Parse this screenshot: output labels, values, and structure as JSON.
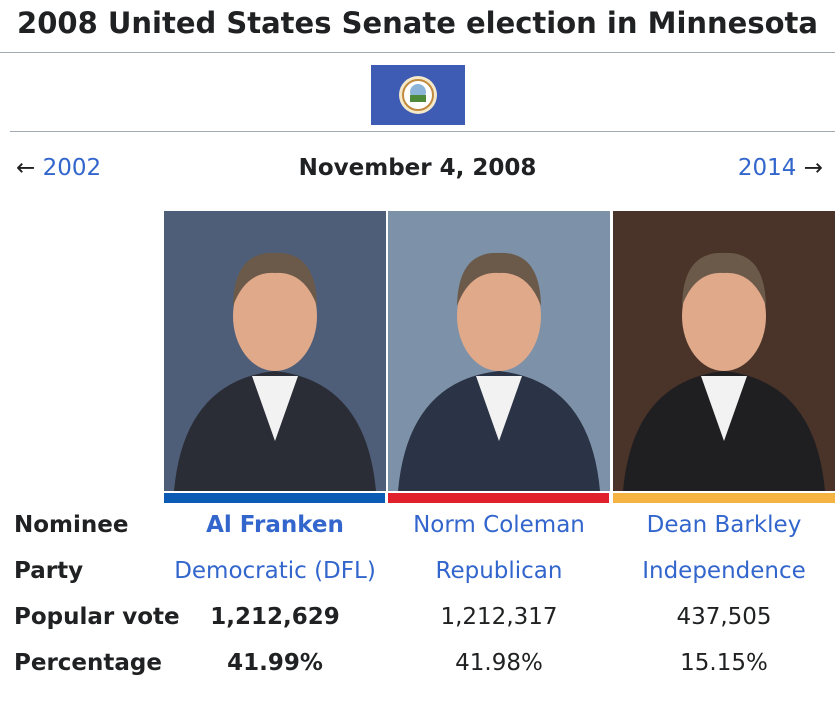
{
  "header": {
    "title": "2008 United States Senate election in Minnesota"
  },
  "nav": {
    "prev_arrow": "←",
    "prev_year": "2002",
    "date": "November 4, 2008",
    "next_year": "2014",
    "next_arrow": "→"
  },
  "table": {
    "row_labels": [
      "Nominee",
      "Party",
      "Popular vote",
      "Percentage"
    ],
    "candidates": [
      {
        "name": "Al Franken",
        "party": "Democratic (DFL)",
        "votes": "1,212,629",
        "percentage": "41.99%",
        "color": "#0b5ab4"
      },
      {
        "name": "Norm Coleman",
        "party": "Republican",
        "votes": "1,212,317",
        "percentage": "41.98%",
        "color": "#e0202a"
      },
      {
        "name": "Dean Barkley",
        "party": "Independence",
        "votes": "437,505",
        "percentage": "15.15%",
        "color": "#f5b342"
      }
    ]
  }
}
